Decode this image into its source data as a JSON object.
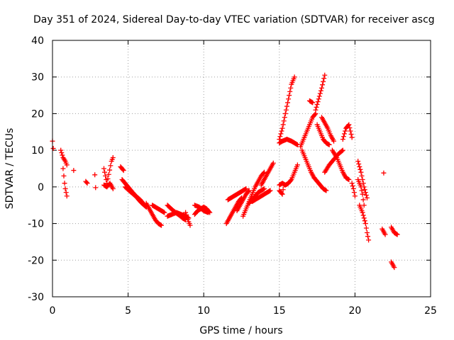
{
  "chart_data": {
    "type": "scatter",
    "title": "Day 351 of 2024, Sidereal Day-to-day VTEC variation (SDTVAR) for receiver ascg",
    "xlabel": "GPS time / hours",
    "ylabel": "SDTVAR / TECUs",
    "xlim": [
      0,
      25
    ],
    "ylim": [
      -30,
      40
    ],
    "xticks": [
      0,
      5,
      10,
      15,
      20,
      25
    ],
    "yticks": [
      -30,
      -20,
      -10,
      0,
      10,
      20,
      30,
      40
    ],
    "xtick_labels": [
      "0",
      "5",
      "10",
      "15",
      "20",
      "25"
    ],
    "ytick_labels": [
      "-30",
      "-20",
      "-10",
      "0",
      "10",
      "20",
      "30",
      "40"
    ],
    "grid": true,
    "marker": "plus",
    "color": "#ff0000",
    "tracks": [
      {
        "x": [
          0.0,
          0.05
        ],
        "y": [
          12.5,
          10.5
        ]
      },
      {
        "x": [
          0.55,
          0.7,
          0.85,
          0.95
        ],
        "y": [
          10.0,
          8.0,
          7.0,
          6.0
        ]
      },
      {
        "x": [
          0.7,
          0.75,
          0.8,
          0.85,
          0.9,
          0.95
        ],
        "y": [
          5.0,
          3.0,
          1.0,
          -0.5,
          -1.5,
          -2.5
        ]
      },
      {
        "x": [
          1.4
        ],
        "y": [
          4.5
        ]
      },
      {
        "x": [
          2.2,
          2.3
        ],
        "y": [
          1.5,
          1.0
        ]
      },
      {
        "x": [
          2.8,
          2.85
        ],
        "y": [
          3.3,
          -0.2
        ]
      },
      {
        "x": [
          3.4,
          3.5,
          3.6,
          3.9,
          4.0
        ],
        "y": [
          5.0,
          3.0,
          1.0,
          7.0,
          8.0
        ]
      },
      {
        "x": [
          3.4,
          3.6,
          3.8,
          4.0
        ],
        "y": [
          0.5,
          0.0,
          1.0,
          -0.5
        ]
      },
      {
        "x": [
          4.5,
          4.7
        ],
        "y": [
          5.5,
          4.5
        ]
      },
      {
        "x": [
          4.6,
          4.8,
          5.0,
          5.2,
          5.4,
          5.6,
          5.8,
          6.0,
          6.2
        ],
        "y": [
          2.0,
          1.0,
          0.0,
          -1.0,
          -2.0,
          -2.8,
          -3.5,
          -4.5,
          -5.5
        ]
      },
      {
        "x": [
          4.8,
          5.0,
          5.2,
          5.4,
          5.6,
          5.8,
          6.0,
          6.2
        ],
        "y": [
          0.0,
          -0.8,
          -1.5,
          -2.2,
          -3.0,
          -4.0,
          -4.8,
          -5.5
        ]
      },
      {
        "x": [
          6.2,
          6.4,
          6.6,
          6.8,
          7.0,
          7.2
        ],
        "y": [
          -4.5,
          -6.0,
          -7.5,
          -9.0,
          -10.0,
          -10.5
        ]
      },
      {
        "x": [
          6.6,
          6.8,
          7.0,
          7.2,
          7.4
        ],
        "y": [
          -5.0,
          -5.5,
          -6.0,
          -6.5,
          -7.0
        ]
      },
      {
        "x": [
          7.6,
          7.8,
          8.0,
          8.2,
          8.4,
          8.6,
          8.8
        ],
        "y": [
          -5.0,
          -5.8,
          -6.5,
          -7.2,
          -7.8,
          -8.5,
          -9.0
        ]
      },
      {
        "x": [
          7.6,
          7.9,
          8.2,
          8.5,
          8.8,
          9.0
        ],
        "y": [
          -8.0,
          -7.5,
          -7.0,
          -7.5,
          -8.0,
          -8.5
        ]
      },
      {
        "x": [
          8.8,
          9.0,
          9.1
        ],
        "y": [
          -7.0,
          -9.5,
          -10.5
        ]
      },
      {
        "x": [
          9.4,
          9.6,
          9.8,
          10.0,
          10.2,
          10.4
        ],
        "y": [
          -7.5,
          -6.5,
          -6.0,
          -5.5,
          -6.0,
          -7.0
        ]
      },
      {
        "x": [
          9.4,
          9.7,
          10.0,
          10.3
        ],
        "y": [
          -5.0,
          -5.5,
          -6.5,
          -7.0
        ]
      },
      {
        "x": [
          11.5,
          11.7,
          11.9,
          12.1,
          12.3,
          12.5
        ],
        "y": [
          -10.0,
          -8.5,
          -7.0,
          -5.5,
          -4.0,
          -3.0
        ]
      },
      {
        "x": [
          11.6,
          11.8,
          12.0,
          12.2,
          12.4,
          12.6,
          12.8
        ],
        "y": [
          -3.5,
          -3.0,
          -2.5,
          -2.0,
          -1.5,
          -1.0,
          -0.5
        ]
      },
      {
        "x": [
          12.2,
          12.4,
          12.6,
          12.8,
          13.0
        ],
        "y": [
          -6.5,
          -5.0,
          -3.5,
          -2.0,
          -1.0
        ]
      },
      {
        "x": [
          12.6,
          12.8,
          13.0,
          13.2,
          13.4,
          13.6,
          13.8,
          14.0
        ],
        "y": [
          -8.0,
          -6.0,
          -4.0,
          -2.0,
          0.0,
          1.5,
          3.0,
          4.0
        ]
      },
      {
        "x": [
          13.0,
          13.2,
          13.4,
          13.6,
          13.8,
          14.0
        ],
        "y": [
          -4.5,
          -3.5,
          -2.5,
          -1.5,
          -1.0,
          -0.5
        ]
      },
      {
        "x": [
          13.8,
          14.0,
          14.2,
          14.4,
          14.6
        ],
        "y": [
          0.5,
          2.0,
          3.5,
          5.0,
          6.5
        ]
      },
      {
        "x": [
          13.2,
          13.4,
          13.6,
          13.8,
          14.0,
          14.2,
          14.4
        ],
        "y": [
          -4.0,
          -3.5,
          -3.0,
          -2.5,
          -2.0,
          -1.5,
          -1.0
        ]
      },
      {
        "x": [
          15.0,
          15.1,
          15.2,
          15.3
        ],
        "y": [
          -1.0,
          -1.5,
          -2.0,
          0.5
        ]
      },
      {
        "x": [
          15.0,
          15.2,
          15.4,
          15.6,
          15.8,
          16.0,
          16.2
        ],
        "y": [
          0.5,
          1.0,
          0.5,
          1.0,
          2.0,
          4.0,
          6.0
        ]
      },
      {
        "x": [
          15.0,
          15.2,
          15.4,
          15.6,
          15.8,
          16.0
        ],
        "y": [
          13.0,
          16.0,
          20.0,
          24.0,
          28.0,
          30.0
        ]
      },
      {
        "x": [
          15.0,
          15.2,
          15.5,
          15.8,
          16.0,
          16.2
        ],
        "y": [
          12.0,
          12.5,
          13.0,
          12.5,
          12.0,
          11.5
        ]
      },
      {
        "x": [
          16.4,
          16.6,
          16.8,
          17.0,
          17.2,
          17.4
        ],
        "y": [
          11.0,
          13.0,
          15.0,
          17.0,
          19.0,
          20.0
        ]
      },
      {
        "x": [
          16.5,
          16.7,
          16.9,
          17.1,
          17.3
        ],
        "y": [
          10.0,
          8.0,
          6.0,
          4.0,
          2.5
        ]
      },
      {
        "x": [
          17.0,
          17.2
        ],
        "y": [
          23.5,
          23.0
        ]
      },
      {
        "x": [
          17.4,
          17.6,
          17.8,
          18.0
        ],
        "y": [
          21.0,
          24.0,
          27.0,
          30.5
        ]
      },
      {
        "x": [
          17.3,
          17.5,
          17.7,
          17.9,
          18.1
        ],
        "y": [
          2.5,
          1.5,
          0.5,
          -0.5,
          -1.0
        ]
      },
      {
        "x": [
          17.8,
          18.0,
          18.2,
          18.4,
          18.6
        ],
        "y": [
          19.0,
          17.5,
          16.0,
          14.0,
          12.5
        ]
      },
      {
        "x": [
          17.5,
          17.7,
          17.9,
          18.1,
          18.3
        ],
        "y": [
          17.0,
          15.0,
          13.0,
          12.0,
          11.5
        ]
      },
      {
        "x": [
          18.0,
          18.3,
          18.6,
          18.9,
          19.2
        ],
        "y": [
          4.0,
          6.0,
          7.5,
          9.0,
          10.0
        ]
      },
      {
        "x": [
          18.5,
          18.8,
          19.0,
          19.2,
          19.4,
          19.6
        ],
        "y": [
          10.0,
          8.0,
          6.0,
          4.0,
          2.5,
          2.0
        ]
      },
      {
        "x": [
          19.2,
          19.4,
          19.6,
          19.8
        ],
        "y": [
          13.0,
          16.0,
          17.0,
          13.5
        ]
      },
      {
        "x": [
          19.8,
          19.9,
          20.0
        ],
        "y": [
          1.0,
          -0.5,
          -2.5
        ]
      },
      {
        "x": [
          20.2,
          20.4,
          20.6,
          20.8
        ],
        "y": [
          7.0,
          4.0,
          0.0,
          -3.0
        ]
      },
      {
        "x": [
          20.3,
          20.5,
          20.7,
          20.8,
          20.9
        ],
        "y": [
          -5.0,
          -7.0,
          -10.0,
          -12.5,
          -14.5
        ]
      },
      {
        "x": [
          20.2,
          20.4,
          20.5,
          20.6
        ],
        "y": [
          2.0,
          0.0,
          -2.0,
          -5.0
        ]
      },
      {
        "x": [
          21.8,
          22.0
        ],
        "y": [
          -11.5,
          -13.0
        ]
      },
      {
        "x": [
          21.9
        ],
        "y": [
          3.8
        ]
      },
      {
        "x": [
          22.4,
          22.6,
          22.8
        ],
        "y": [
          -11.0,
          -12.5,
          -13.0
        ]
      },
      {
        "x": [
          22.4,
          22.6
        ],
        "y": [
          -20.5,
          -22.0
        ]
      }
    ]
  }
}
